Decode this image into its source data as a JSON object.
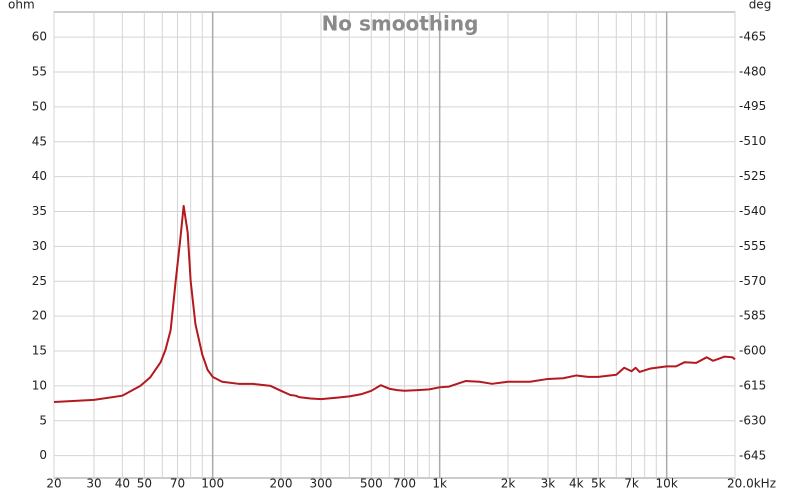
{
  "chart_data": {
    "type": "line",
    "title": "No smoothing",
    "ylabel": "ohm",
    "y2label": "deg",
    "xscale": "log",
    "grid": true,
    "color": "#b3191e",
    "xlim": [
      20,
      20000
    ],
    "ylim": [
      -3.2,
      63.6
    ],
    "y2lim": [
      -654.5,
      -454.3
    ],
    "xticks": [
      20,
      30,
      40,
      50,
      70,
      100,
      200,
      300,
      500,
      700,
      {
        "value": 1000,
        "label": "1k"
      },
      {
        "value": 2000,
        "label": "2k"
      },
      {
        "value": 3000,
        "label": "3k"
      },
      {
        "value": 4000,
        "label": "4k"
      },
      {
        "value": 5000,
        "label": "5k"
      },
      {
        "value": 7000,
        "label": "7k"
      },
      {
        "value": 10000,
        "label": "10k"
      },
      {
        "value": 20000,
        "label": "20.0kHz"
      }
    ],
    "xminor_ticks": [
      60,
      80,
      90,
      400,
      600,
      800,
      900,
      6000,
      8000,
      9000
    ],
    "yticks": [
      0,
      5,
      10,
      15,
      20,
      25,
      30,
      35,
      40,
      45,
      50,
      55,
      60
    ],
    "y2ticks": [
      -645,
      -630,
      -615,
      -600,
      -585,
      -570,
      -555,
      -540,
      -525,
      -510,
      -495,
      -480,
      -465
    ],
    "x": [
      20,
      30,
      40,
      48,
      53,
      59,
      62,
      65.3,
      68.7,
      72,
      74.5,
      77.6,
      80,
      84,
      90,
      95,
      100,
      110,
      130,
      150,
      180,
      200,
      220,
      232,
      240,
      270,
      300,
      350,
      400,
      450,
      500,
      550,
      600,
      650,
      700,
      800,
      900,
      1000,
      1100,
      1300,
      1500,
      1700,
      2000,
      2500,
      3000,
      3500,
      4000,
      4500,
      5000,
      6000,
      6500,
      7000,
      7300,
      7600,
      8500,
      10000,
      11000,
      12000,
      13500,
      15000,
      16000,
      17000,
      18000,
      19500,
      20000
    ],
    "values": [
      7.7,
      8.0,
      8.6,
      10.0,
      11.2,
      13.4,
      15.2,
      18.0,
      25.0,
      31.0,
      35.8,
      32.0,
      25.0,
      18.8,
      14.5,
      12.3,
      11.3,
      10.6,
      10.3,
      10.3,
      10.0,
      9.3,
      8.7,
      8.6,
      8.4,
      8.2,
      8.1,
      8.3,
      8.5,
      8.8,
      9.3,
      10.1,
      9.6,
      9.4,
      9.3,
      9.4,
      9.5,
      9.8,
      9.9,
      10.7,
      10.6,
      10.3,
      10.6,
      10.6,
      11.0,
      11.1,
      11.5,
      11.3,
      11.3,
      11.6,
      12.6,
      12.1,
      12.6,
      12.0,
      12.5,
      12.8,
      12.8,
      13.4,
      13.3,
      14.1,
      13.6,
      13.9,
      14.2,
      14.1,
      13.8
    ]
  }
}
